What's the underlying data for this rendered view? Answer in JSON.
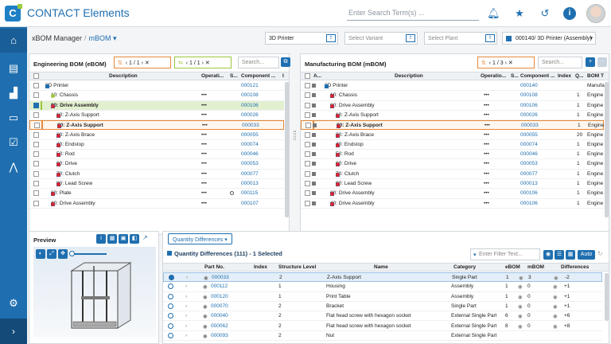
{
  "header": {
    "app_title": "CONTACT Elements",
    "logo_letter": "C",
    "search_placeholder": "Enter Search Term(s) ..."
  },
  "icons": [
    "bell-icon",
    "star-icon",
    "history-icon",
    "info-icon"
  ],
  "breadcrumb": {
    "root": "xBOM Manager",
    "current": "mBOM"
  },
  "selectors": {
    "product": "3D Printer",
    "variant_placeholder": "Select Variant",
    "plant_placeholder": "Select Plant",
    "assembly": "000140/ 3D Printer (Assembly)"
  },
  "ebom": {
    "title": "Engineering BOM (eBOM)",
    "pager_orange": "1 / 1",
    "pager_green": "1 / 1",
    "search_placeholder": "Search...",
    "columns": [
      "Description",
      "Operati...",
      "S...",
      "Component ...",
      "I"
    ],
    "rows": [
      {
        "desc": "3D Printer",
        "op": "",
        "comp": "000121",
        "indent": 0,
        "exp": "▾",
        "style": ""
      },
      {
        "desc": "10: Chassis",
        "op": "•••",
        "comp": "000108",
        "indent": 1,
        "exp": "›",
        "style": "",
        "green": true
      },
      {
        "desc": "20: Drive Assembly",
        "op": "•••",
        "comp": "000106",
        "indent": 1,
        "exp": "▾",
        "style": "green",
        "bold": true
      },
      {
        "desc": "10: Z-Axis Support",
        "op": "•••",
        "comp": "000026",
        "indent": 2,
        "exp": "",
        "style": ""
      },
      {
        "desc": "20: Z-Axis Support",
        "op": "•••",
        "comp": "000033",
        "indent": 2,
        "exp": "",
        "style": "orange",
        "bold": true
      },
      {
        "desc": "30: Z-Axis Brace",
        "op": "•••",
        "comp": "000055",
        "indent": 2,
        "exp": "",
        "style": ""
      },
      {
        "desc": "40: Endstop",
        "op": "•••",
        "comp": "000074",
        "indent": 2,
        "exp": "",
        "style": ""
      },
      {
        "desc": "50: Rod",
        "op": "•••",
        "comp": "000046",
        "indent": 2,
        "exp": "",
        "style": ""
      },
      {
        "desc": "60: Drive",
        "op": "•••",
        "comp": "000053",
        "indent": 2,
        "exp": "",
        "style": ""
      },
      {
        "desc": "70: Clutch",
        "op": "•••",
        "comp": "000077",
        "indent": 2,
        "exp": "",
        "style": ""
      },
      {
        "desc": "80: Lead Screw",
        "op": "•••",
        "comp": "000013",
        "indent": 2,
        "exp": "",
        "style": ""
      },
      {
        "desc": "30: Plate",
        "op": "•••",
        "comp": "000115",
        "indent": 1,
        "exp": "",
        "style": "",
        "circle": true
      },
      {
        "desc": "40: Drive Assembly",
        "op": "•••",
        "comp": "000107",
        "indent": 1,
        "exp": "›",
        "style": ""
      }
    ]
  },
  "mbom": {
    "title": "Manufacturing BOM (mBOM)",
    "pager_orange": "1 / 3",
    "search_placeholder": "Search...",
    "columns": [
      "A...",
      "Description",
      "Operatio...",
      "S...",
      "Component ...",
      "Index",
      "Q...",
      "BOM T"
    ],
    "rows": [
      {
        "desc": "3D Printer",
        "op": "",
        "comp": "000140",
        "idx": "",
        "q": "",
        "bom": "Manufa",
        "indent": 0,
        "exp": "▾",
        "style": ""
      },
      {
        "desc": "10: Chassis",
        "op": "•••",
        "comp": "000108",
        "idx": "",
        "q": "1",
        "bom": "Engine",
        "indent": 1,
        "exp": "›",
        "style": ""
      },
      {
        "desc": "20: Drive Assembly",
        "op": "•••",
        "comp": "000106",
        "idx": "",
        "q": "1",
        "bom": "Engine",
        "indent": 1,
        "exp": "▾",
        "style": ""
      },
      {
        "desc": "10: Z-Axis Support",
        "op": "•••",
        "comp": "000026",
        "idx": "",
        "q": "1",
        "bom": "Engine",
        "indent": 2,
        "exp": "",
        "style": ""
      },
      {
        "desc": "20: Z-Axis Support",
        "op": "•••",
        "comp": "000033",
        "idx": "",
        "q": "1",
        "bom": "Engine",
        "indent": 2,
        "exp": "",
        "style": "orange",
        "bold": true
      },
      {
        "desc": "30: Z-Axis Brace",
        "op": "•••",
        "comp": "000055",
        "idx": "",
        "q": "20",
        "bom": "Engine",
        "indent": 2,
        "exp": "",
        "style": ""
      },
      {
        "desc": "40: Endstop",
        "op": "•••",
        "comp": "000074",
        "idx": "",
        "q": "1",
        "bom": "Engine",
        "indent": 2,
        "exp": "",
        "style": ""
      },
      {
        "desc": "50: Rod",
        "op": "•••",
        "comp": "000046",
        "idx": "",
        "q": "1",
        "bom": "Engine",
        "indent": 2,
        "exp": "",
        "style": ""
      },
      {
        "desc": "60: Drive",
        "op": "•••",
        "comp": "000053",
        "idx": "",
        "q": "1",
        "bom": "Engine",
        "indent": 2,
        "exp": "",
        "style": ""
      },
      {
        "desc": "70: Clutch",
        "op": "•••",
        "comp": "000077",
        "idx": "",
        "q": "1",
        "bom": "Engine",
        "indent": 2,
        "exp": "",
        "style": ""
      },
      {
        "desc": "80: Lead Screw",
        "op": "•••",
        "comp": "000013",
        "idx": "",
        "q": "1",
        "bom": "Engine",
        "indent": 2,
        "exp": "",
        "style": ""
      },
      {
        "desc": "30: Drive Assembly",
        "op": "•••",
        "comp": "000106",
        "idx": "",
        "q": "1",
        "bom": "Engine",
        "indent": 1,
        "exp": "›",
        "style": ""
      },
      {
        "desc": "40: Drive Assembly",
        "op": "•••",
        "comp": "000106",
        "idx": "",
        "q": "1",
        "bom": "Engine",
        "indent": 1,
        "exp": "›",
        "style": ""
      }
    ]
  },
  "preview": {
    "title": "Preview"
  },
  "quantity": {
    "tab_label": "Quantity Differences",
    "title": "Quantity Differences (111) - 1 Selected",
    "filter_placeholder": "Enter Filter Text...",
    "auto_label": "Auto",
    "columns": [
      "Part No.",
      "Index",
      "Structure Level",
      "Name",
      "Category",
      "eBOM",
      "mBOM",
      "Differences"
    ],
    "rows": [
      {
        "part": "000033",
        "index": "",
        "level": "2",
        "name": "Z-Axis Support",
        "cat": "Single Part",
        "ebom": "1",
        "mbom": "3",
        "diff": "-2",
        "selected": true
      },
      {
        "part": "000112",
        "index": "",
        "level": "1",
        "name": "Housing",
        "cat": "Assembly",
        "ebom": "1",
        "mbom": "0",
        "diff": "+1"
      },
      {
        "part": "000120",
        "index": "",
        "level": "1",
        "name": "Print Table",
        "cat": "Assembly",
        "ebom": "1",
        "mbom": "0",
        "diff": "+1"
      },
      {
        "part": "000070",
        "index": "",
        "level": "2",
        "name": "Bracket",
        "cat": "Single Part",
        "ebom": "1",
        "mbom": "0",
        "diff": "+1"
      },
      {
        "part": "000040",
        "index": "",
        "level": "2",
        "name": "Flat head screw with hexagon socket",
        "cat": "External Single Part",
        "ebom": "6",
        "mbom": "0",
        "diff": "+6"
      },
      {
        "part": "000062",
        "index": "",
        "level": "2",
        "name": "Flat head screw with hexagon socket",
        "cat": "External Single Part",
        "ebom": "8",
        "mbom": "0",
        "diff": "+8"
      },
      {
        "part": "000093",
        "index": "",
        "level": "2",
        "name": "Nut",
        "cat": "External Single Part",
        "ebom": "",
        "mbom": "",
        "diff": ""
      }
    ]
  }
}
